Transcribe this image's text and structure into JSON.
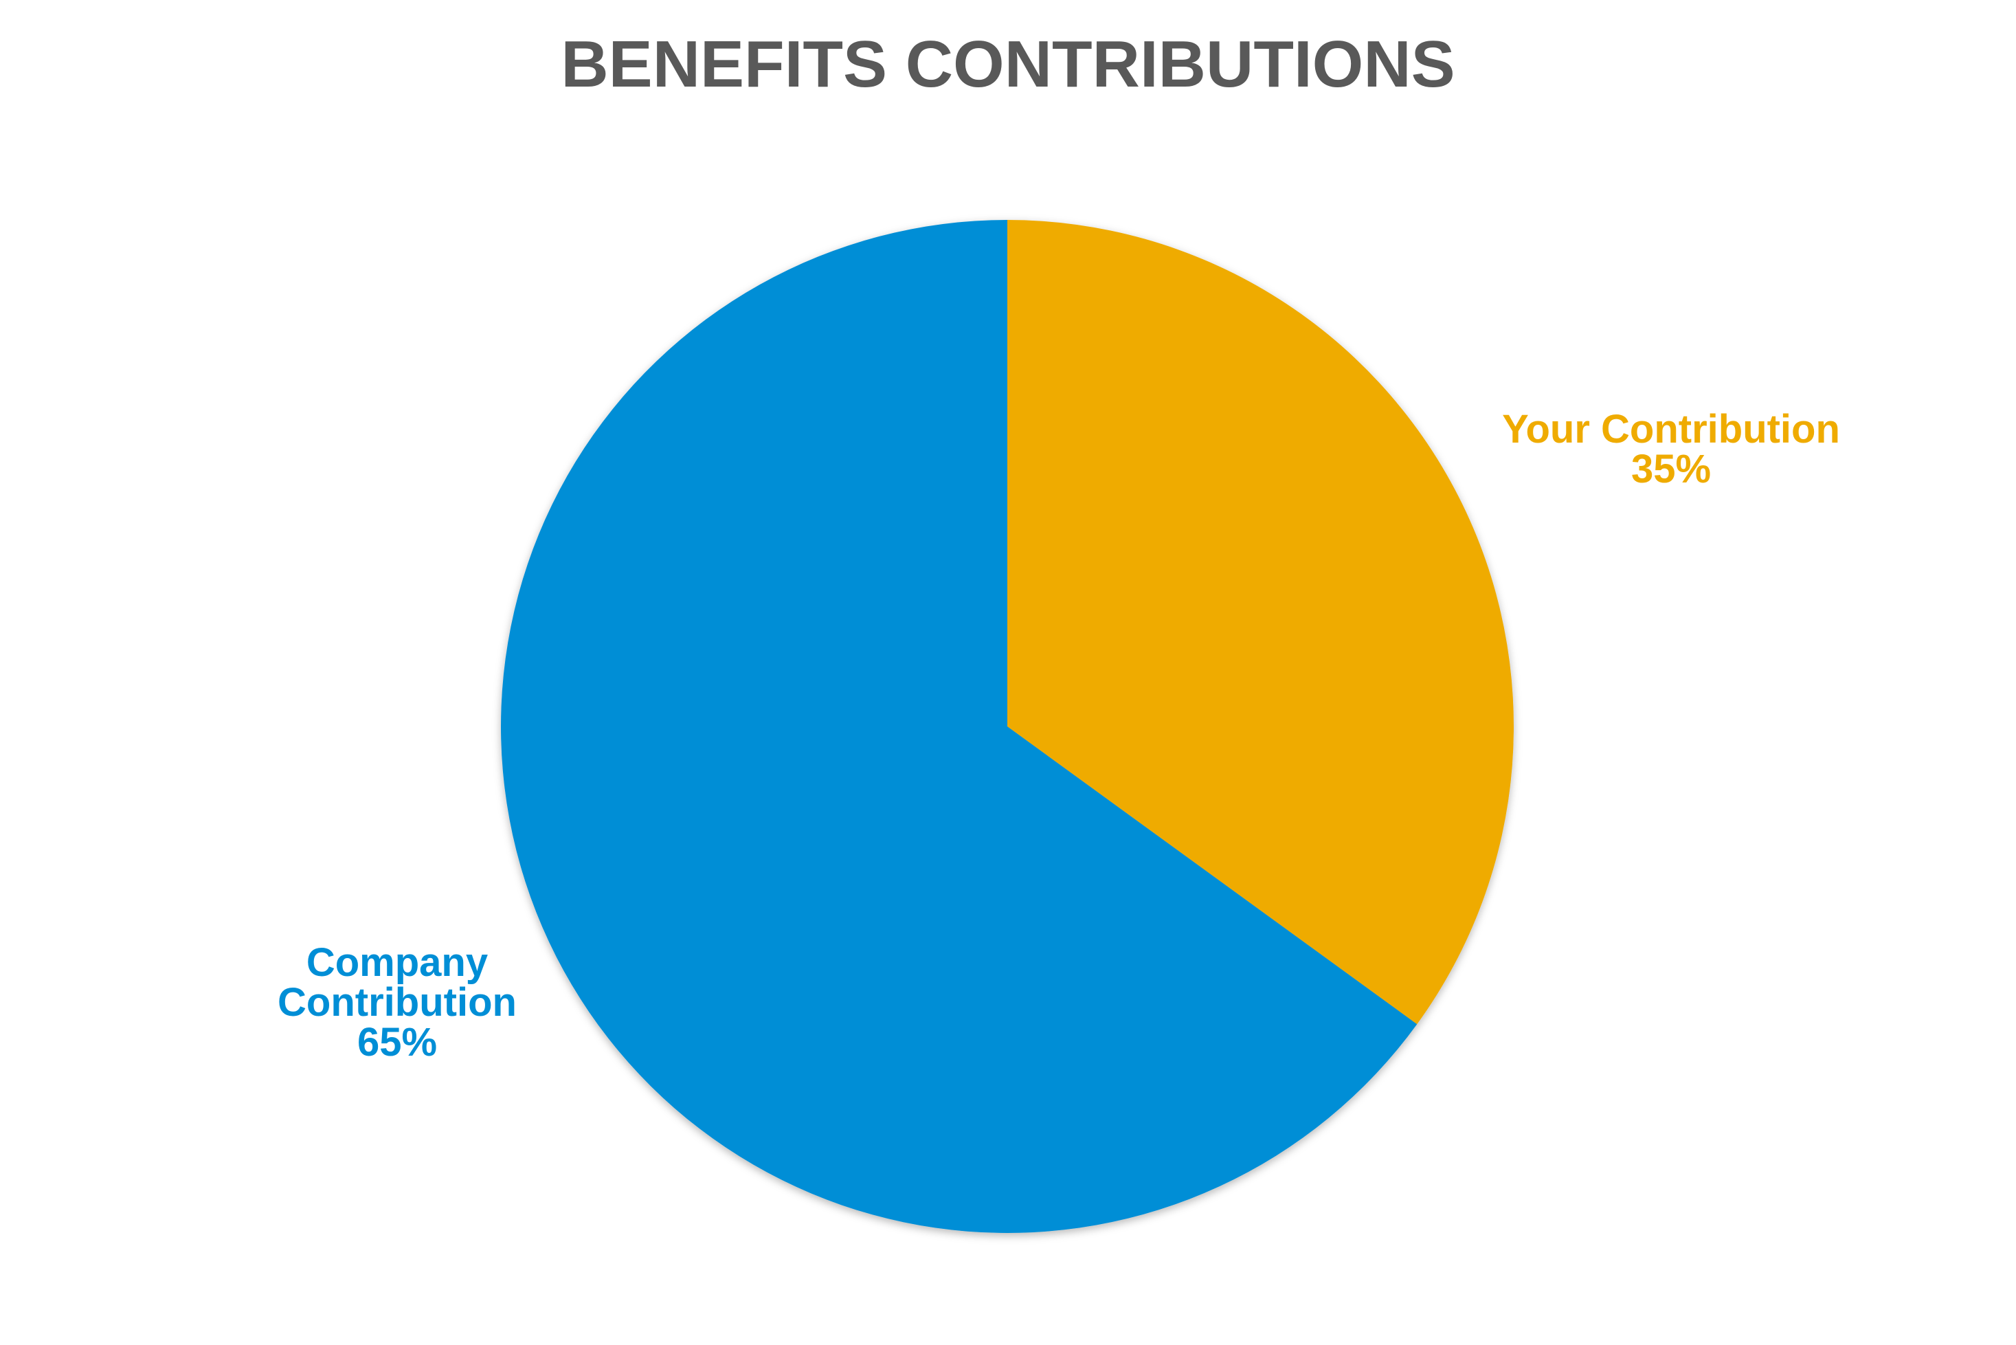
{
  "chart_data": {
    "type": "pie",
    "title": "BENEFITS CONTRIBUTIONS",
    "start_angle_deg": 0,
    "direction": "clockwise",
    "slices": [
      {
        "name": "Your Contribution",
        "value": 35,
        "value_label": "35%",
        "color": "#EFAB00",
        "label_lines": [
          "Your Contribution",
          "35%"
        ]
      },
      {
        "name": "Company Contribution",
        "value": 65,
        "value_label": "65%",
        "color": "#008ED6",
        "label_lines": [
          "Company",
          "Contribution",
          "65%"
        ]
      }
    ],
    "legend": "none"
  }
}
